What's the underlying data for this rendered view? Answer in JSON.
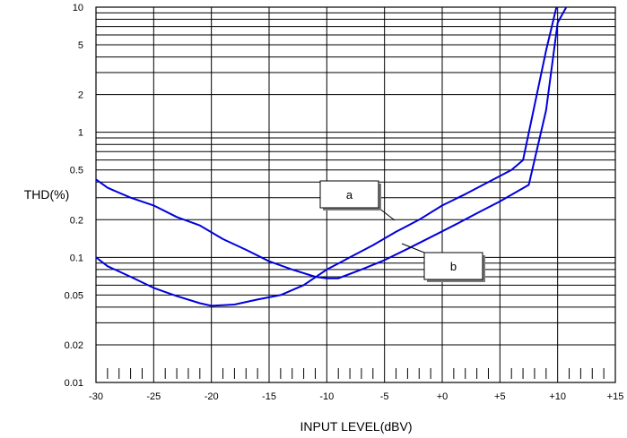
{
  "chart_data": {
    "type": "line",
    "title": "",
    "xlabel": "INPUT LEVEL(dBV)",
    "ylabel": "THD(%)",
    "x_scale": "linear",
    "y_scale": "log",
    "xlim": [
      -30,
      15
    ],
    "ylim": [
      0.01,
      10
    ],
    "grid": true,
    "x_ticks": [
      {
        "value": -30,
        "label": "-30"
      },
      {
        "value": -25,
        "label": "-25"
      },
      {
        "value": -20,
        "label": "-20"
      },
      {
        "value": -15,
        "label": "-15"
      },
      {
        "value": -10,
        "label": "-10"
      },
      {
        "value": -5,
        "label": "-5"
      },
      {
        "value": 0,
        "label": "+0"
      },
      {
        "value": 5,
        "label": "+5"
      },
      {
        "value": 10,
        "label": "+10"
      },
      {
        "value": 15,
        "label": "+15"
      }
    ],
    "y_ticks": [
      {
        "value": 0.01,
        "label": "0.01"
      },
      {
        "value": 0.02,
        "label": "0.02"
      },
      {
        "value": 0.05,
        "label": "0.05"
      },
      {
        "value": 0.1,
        "label": "0.1"
      },
      {
        "value": 0.2,
        "label": "0.2"
      },
      {
        "value": 0.5,
        "label": "0.5"
      },
      {
        "value": 1,
        "label": "1"
      },
      {
        "value": 2,
        "label": "2"
      },
      {
        "value": 5,
        "label": "5"
      },
      {
        "value": 10,
        "label": "10"
      }
    ],
    "series": [
      {
        "name": "a",
        "color": "#0000dd",
        "points": [
          [
            -30,
            0.42
          ],
          [
            -29,
            0.36
          ],
          [
            -27,
            0.3
          ],
          [
            -25,
            0.26
          ],
          [
            -23,
            0.21
          ],
          [
            -21,
            0.18
          ],
          [
            -19,
            0.14
          ],
          [
            -17,
            0.115
          ],
          [
            -15,
            0.093
          ],
          [
            -13,
            0.08
          ],
          [
            -11,
            0.07
          ],
          [
            -10,
            0.068
          ],
          [
            -9,
            0.068
          ],
          [
            -7,
            0.08
          ],
          [
            -5,
            0.095
          ],
          [
            -3,
            0.117
          ],
          [
            -1,
            0.145
          ],
          [
            1,
            0.18
          ],
          [
            3,
            0.225
          ],
          [
            5,
            0.28
          ],
          [
            7.5,
            0.38
          ],
          [
            9,
            1.5
          ],
          [
            10,
            7.5
          ],
          [
            11,
            11
          ]
        ]
      },
      {
        "name": "b",
        "color": "#0000dd",
        "points": [
          [
            -30,
            0.1
          ],
          [
            -29,
            0.085
          ],
          [
            -27,
            0.07
          ],
          [
            -25,
            0.057
          ],
          [
            -23,
            0.049
          ],
          [
            -21,
            0.043
          ],
          [
            -20,
            0.041
          ],
          [
            -18,
            0.042
          ],
          [
            -16,
            0.046
          ],
          [
            -14,
            0.05
          ],
          [
            -12,
            0.06
          ],
          [
            -10,
            0.08
          ],
          [
            -8,
            0.1
          ],
          [
            -6,
            0.125
          ],
          [
            -4,
            0.16
          ],
          [
            -2,
            0.2
          ],
          [
            0,
            0.26
          ],
          [
            2,
            0.32
          ],
          [
            4,
            0.4
          ],
          [
            6,
            0.5
          ],
          [
            7,
            0.6
          ],
          [
            9,
            4.5
          ],
          [
            10,
            11
          ]
        ]
      }
    ],
    "annotations": [
      {
        "text": "a",
        "series": "a"
      },
      {
        "text": "b",
        "series": "b"
      }
    ]
  }
}
